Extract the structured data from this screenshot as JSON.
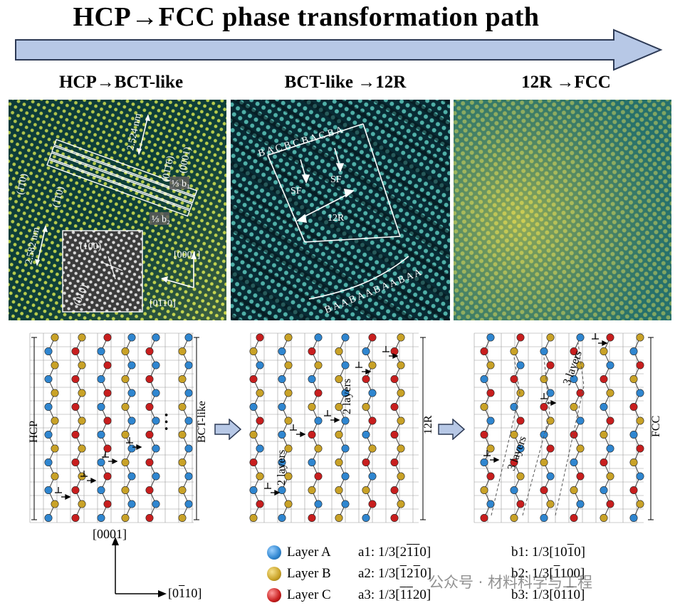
{
  "title": "HCP→FCC phase transformation path",
  "colors": {
    "arrow_fill": "#b7c8e6",
    "arrow_stroke": "#2d3a55",
    "layer_a": "#2f86d0",
    "layer_b": "#c9a227",
    "layer_c": "#c81e1e",
    "grid": "#9a9a9a"
  },
  "stages": [
    {
      "label": "HCP→BCT-like"
    },
    {
      "label": "BCT-like →12R"
    },
    {
      "label": "12R →FCC"
    }
  ],
  "tem1": {
    "dist_top": "2.524 nm",
    "dist_bottom": "2.582 nm",
    "plane_1": "(01̄1̄6)",
    "plane_2": "(0001)",
    "plane_3": "(1̄1̄0)",
    "plane_4": "(1̄10)",
    "burgers_1": "⅓ b₁",
    "burgers_2": "⅓ b₂",
    "dir_1": "[0001]",
    "dir_2": "[01̄10]",
    "inset_plane_1": "(100)",
    "inset_plane_2": "(010)"
  },
  "tem2": {
    "stack_top": "B A C B C B A C B A",
    "sf_1": "SF",
    "sf_2": "SF",
    "label_12r": "12R",
    "stack_bottom": "B A A B A A B A A B A A"
  },
  "schematics": [
    {
      "side_left": "HCP",
      "side_right": "BCT-like",
      "dots": "• • •"
    },
    {
      "side_right": "12R",
      "layers_1": "2 layers",
      "layers_2": "2 layers"
    },
    {
      "side_right": "FCC",
      "layers_1": "3 layers",
      "layers_2": "3 layers"
    }
  ],
  "axes": {
    "vertical": "[0001]",
    "horizontal": "[0110]"
  },
  "legend": [
    {
      "name": "Layer A",
      "color": "#2f86d0",
      "a_key": "a1:",
      "a_val": "1/3[2110]",
      "b_key": "b1:",
      "b_val": "1/3[1010]"
    },
    {
      "name": "Layer B",
      "color": "#c9a227",
      "a_key": "a2:",
      "a_val": "1/3[1210]",
      "b_key": "b2:",
      "b_val": "1/3[1100]"
    },
    {
      "name": "Layer C",
      "color": "#c81e1e",
      "a_key": "a3:",
      "a_val": "1/3[1120]",
      "b_key": "b3:",
      "b_val": "1/3[0110]"
    }
  ],
  "watermark": "公众号 · 材料科学与工程"
}
